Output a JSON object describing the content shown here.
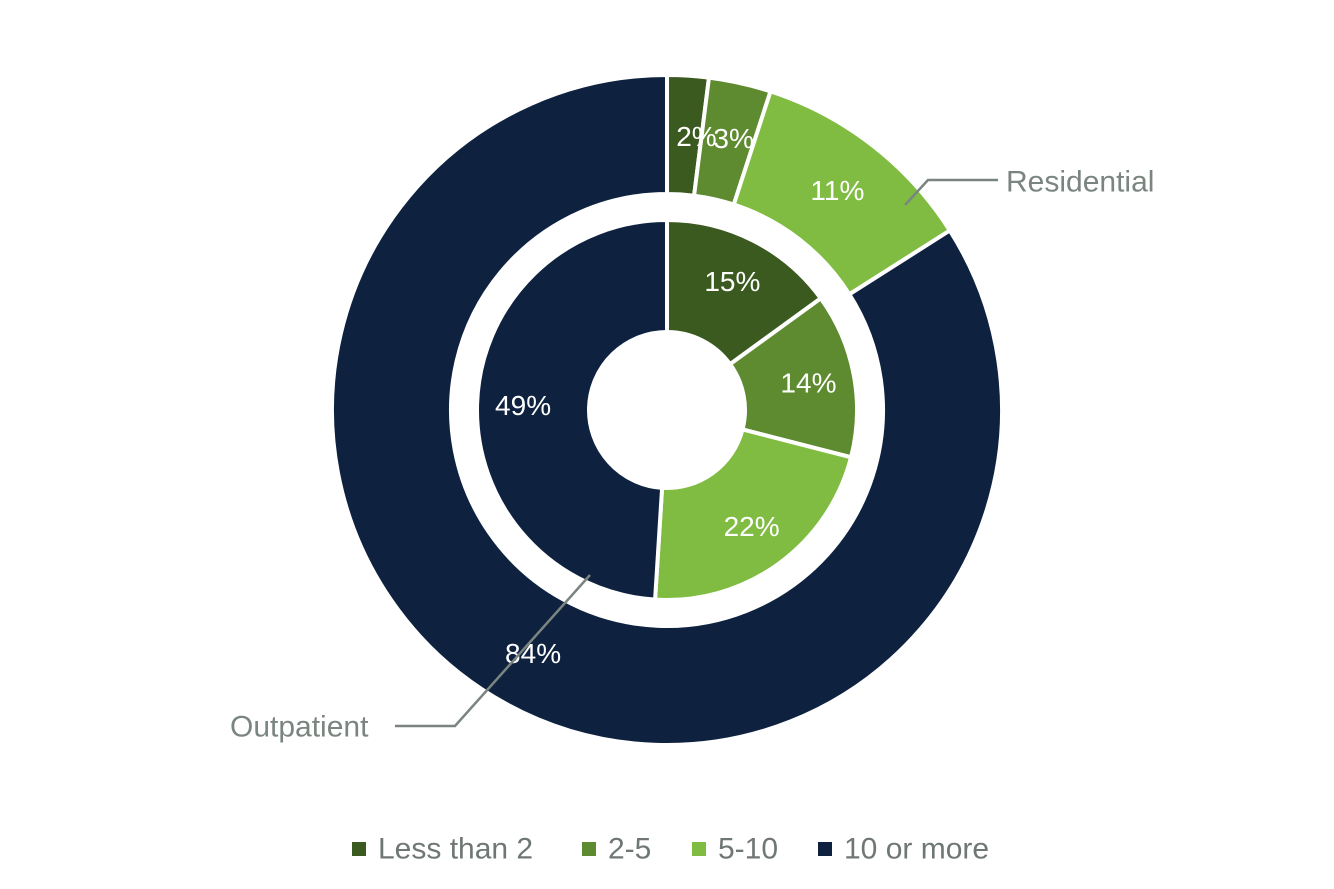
{
  "chart_data": {
    "type": "pie",
    "subtype": "nested-donut",
    "categories": [
      "Less than 2",
      "2-5",
      "5-10",
      "10 or more"
    ],
    "colors": [
      "#3b5a1f",
      "#5e8a30",
      "#80bc42",
      "#0e2240"
    ],
    "series": [
      {
        "name": "Residential",
        "ring": "outer",
        "values": [
          2,
          3,
          11,
          84
        ],
        "labels": [
          "2%",
          "3%",
          "11%",
          "84%"
        ]
      },
      {
        "name": "Outpatient",
        "ring": "inner",
        "values": [
          15,
          14,
          22,
          49
        ],
        "labels": [
          "15%",
          "14%",
          "22%",
          "49%"
        ]
      }
    ],
    "callouts": [
      {
        "series": "Residential",
        "text": "Residential"
      },
      {
        "series": "Outpatient",
        "text": "Outpatient"
      }
    ],
    "legend": {
      "position": "bottom",
      "entries": [
        "Less than 2",
        "2-5",
        "5-10",
        "10 or more"
      ]
    },
    "title": ""
  }
}
